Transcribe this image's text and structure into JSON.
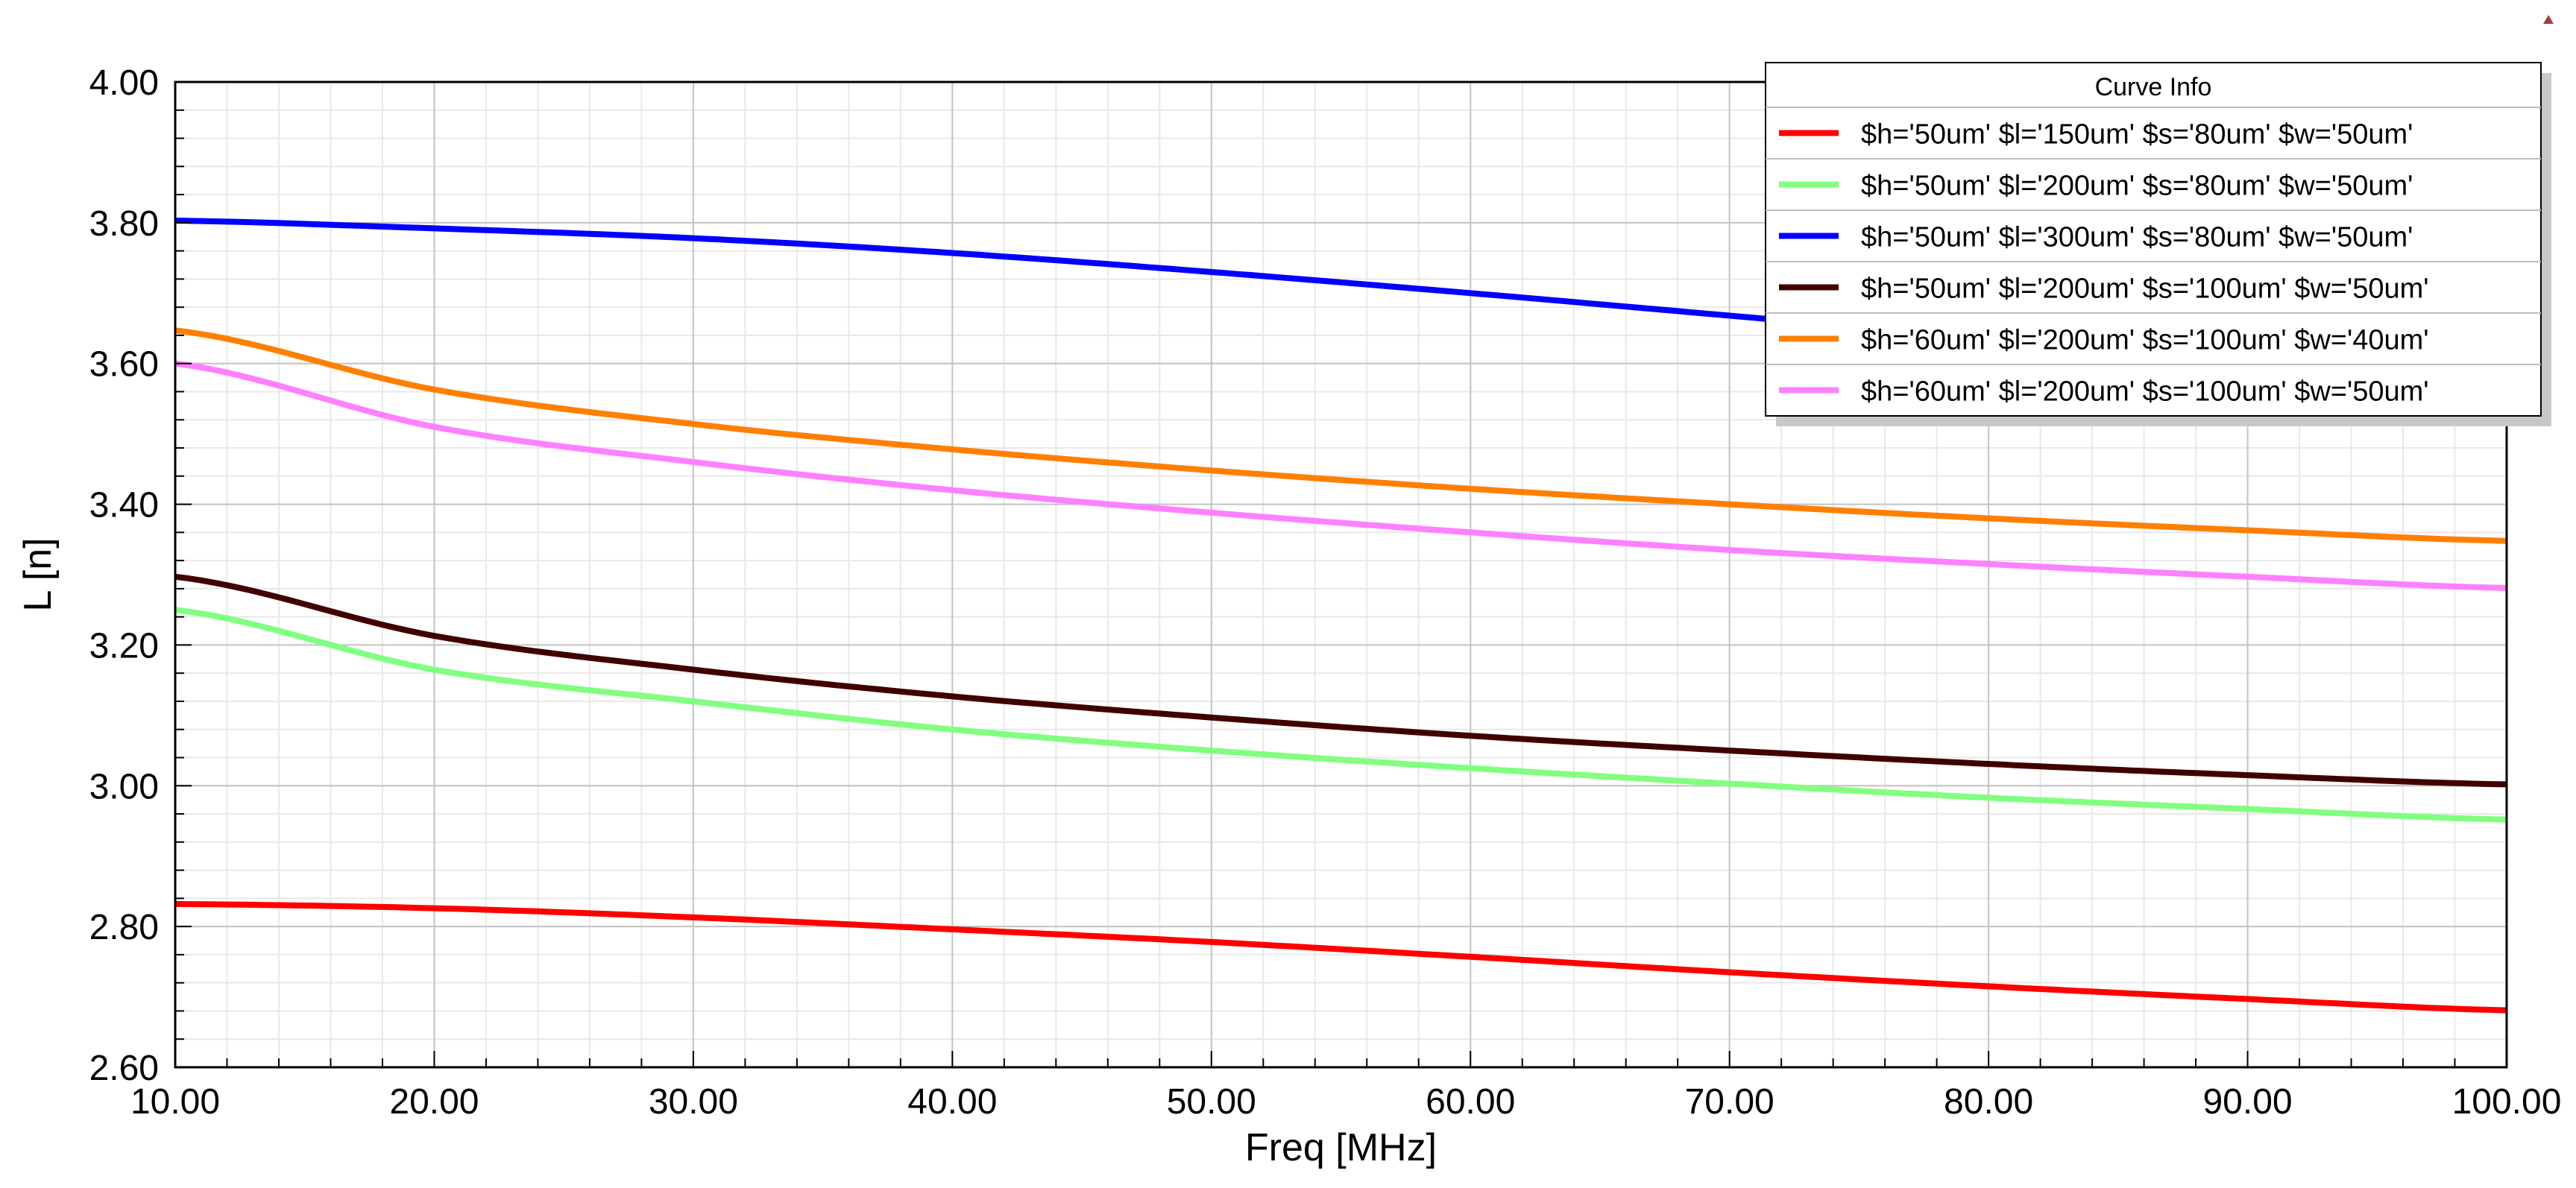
{
  "chart_data": {
    "type": "line",
    "xlabel": "Freq [MHz]",
    "ylabel": "L [n]",
    "xlim": [
      10,
      100
    ],
    "ylim": [
      2.6,
      4.0
    ],
    "x_ticks": [
      "10.00",
      "20.00",
      "30.00",
      "40.00",
      "50.00",
      "60.00",
      "70.00",
      "80.00",
      "90.00",
      "100.00"
    ],
    "y_ticks": [
      "2.60",
      "2.80",
      "3.00",
      "3.20",
      "3.40",
      "3.60",
      "3.80",
      "4.00"
    ],
    "grid": true,
    "legend": {
      "title": "Curve Info",
      "placement": "top-right"
    },
    "x": [
      10,
      20,
      30,
      40,
      50,
      60,
      70,
      80,
      90,
      100
    ],
    "series": [
      {
        "name": "$h='50um' $l='150um' $s='80um' $w='50um'",
        "color": "#ff0000",
        "values": [
          2.832,
          2.826,
          2.813,
          2.796,
          2.778,
          2.757,
          2.735,
          2.715,
          2.697,
          2.681
        ]
      },
      {
        "name": "$h='50um' $l='200um' $s='80um' $w='50um'",
        "color": "#80ff80",
        "values": [
          3.25,
          3.165,
          3.12,
          3.08,
          3.05,
          3.025,
          3.003,
          2.983,
          2.967,
          2.952
        ]
      },
      {
        "name": "$h='50um' $l='300um' $s='80um' $w='50um'",
        "color": "#0000ff",
        "values": [
          3.803,
          3.792,
          3.778,
          3.757,
          3.73,
          3.7,
          3.668,
          3.636,
          3.607,
          3.578
        ]
      },
      {
        "name": "$h='50um' $l='200um' $s='100um' $w='50um'",
        "color": "#400000",
        "values": [
          3.297,
          3.213,
          3.165,
          3.127,
          3.097,
          3.071,
          3.05,
          3.031,
          3.015,
          3.002
        ]
      },
      {
        "name": "$h='60um' $l='200um' $s='100um' $w='40um'",
        "color": "#ff8000",
        "values": [
          3.647,
          3.563,
          3.514,
          3.478,
          3.448,
          3.422,
          3.4,
          3.38,
          3.363,
          3.348
        ]
      },
      {
        "name": "$h='60um' $l='200um' $s='100um' $w='50um'",
        "color": "#ff80ff",
        "values": [
          3.6,
          3.51,
          3.46,
          3.42,
          3.388,
          3.36,
          3.335,
          3.315,
          3.297,
          3.281
        ]
      }
    ]
  }
}
